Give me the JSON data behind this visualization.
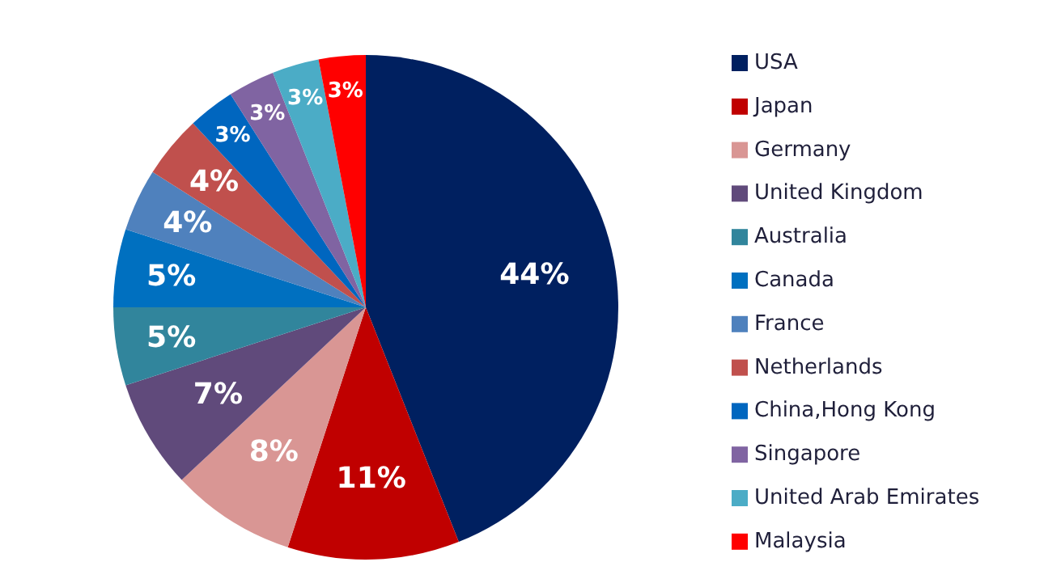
{
  "chart_data": {
    "type": "pie",
    "categories": [
      "USA",
      "Japan",
      "Germany",
      "United Kingdom",
      "Australia",
      "Canada",
      "France",
      "Netherlands",
      "China,Hong Kong",
      "Singapore",
      "United Arab Emirates",
      "Malaysia"
    ],
    "values": [
      44,
      11,
      8,
      7,
      5,
      5,
      4,
      4,
      3,
      3,
      3,
      3
    ],
    "colors": [
      "#002060",
      "#c00000",
      "#d99694",
      "#604a7b",
      "#31859c",
      "#0070c0",
      "#4f81bd",
      "#c0504d",
      "#0066bf",
      "#8064a2",
      "#4bacc6",
      "#ff0000"
    ],
    "value_labels": [
      "44%",
      "11%",
      "8%",
      "7%",
      "5%",
      "5%",
      "4%",
      "4%",
      "3%",
      "3%",
      "3%",
      "3%"
    ],
    "legend": "right"
  }
}
